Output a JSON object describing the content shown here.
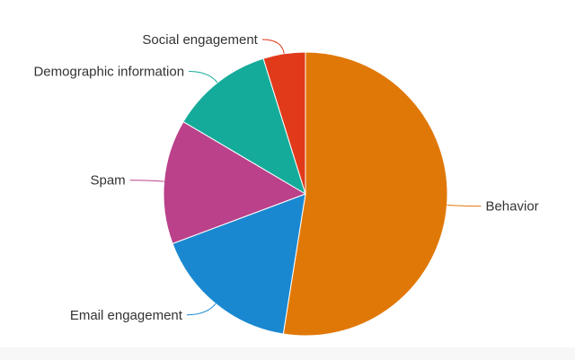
{
  "chart_data": {
    "type": "pie",
    "title": "",
    "start_angle_deg": 0,
    "direction": "clockwise",
    "slices": [
      {
        "label": "Behavior",
        "value": 52.5,
        "color": "#E07807"
      },
      {
        "label": "Email engagement",
        "value": 16.8,
        "color": "#1A88D0"
      },
      {
        "label": "Spam",
        "value": 14.2,
        "color": "#BA418A"
      },
      {
        "label": "Demographic information",
        "value": 11.7,
        "color": "#15AB9A"
      },
      {
        "label": "Social engagement",
        "value": 4.8,
        "color": "#E13A1A"
      }
    ]
  }
}
